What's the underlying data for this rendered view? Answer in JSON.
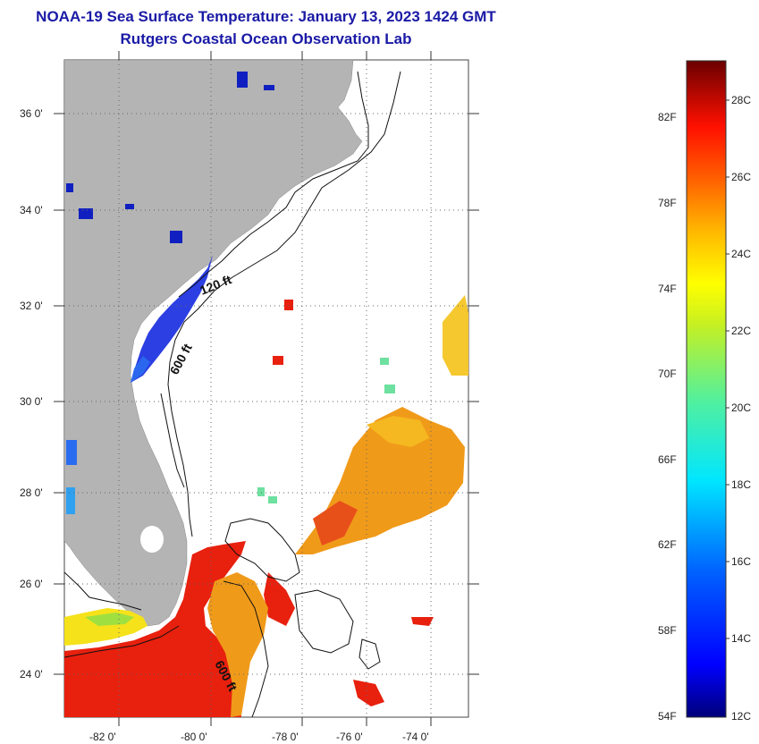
{
  "title": {
    "line1": "NOAA-19 Sea Surface Temperature:  January 13, 2023 1424 GMT",
    "line2": "Rutgers Coastal Ocean Observation Lab"
  },
  "map": {
    "lat_labels": [
      "36 0'",
      "34 0'",
      "32 0'",
      "30 0'",
      "28 0'",
      "26 0'",
      "24 0'"
    ],
    "lon_labels": [
      "-82 0'",
      "-80 0'",
      "-78 0'",
      "-76 0'",
      "-74 0'"
    ],
    "contour_labels": [
      "120 ft",
      "600 ft",
      "600 ft"
    ],
    "land_color": "#b4b4b4",
    "contour_color": "#111111"
  },
  "colorbar": {
    "fahrenheit_labels": [
      "82F",
      "78F",
      "74F",
      "70F",
      "66F",
      "62F",
      "58F",
      "54F"
    ],
    "celsius_labels": [
      "28C",
      "26C",
      "24C",
      "22C",
      "20C",
      "18C",
      "16C",
      "14C",
      "12C"
    ],
    "min_c": 12,
    "max_c": 29.5
  },
  "sst_colors": {
    "cold": "#1a2fe0",
    "warm_red": "#e8200e",
    "orange": "#f09a1a",
    "yellow": "#f5e21a",
    "cyan_green": "#6ee0a0"
  }
}
